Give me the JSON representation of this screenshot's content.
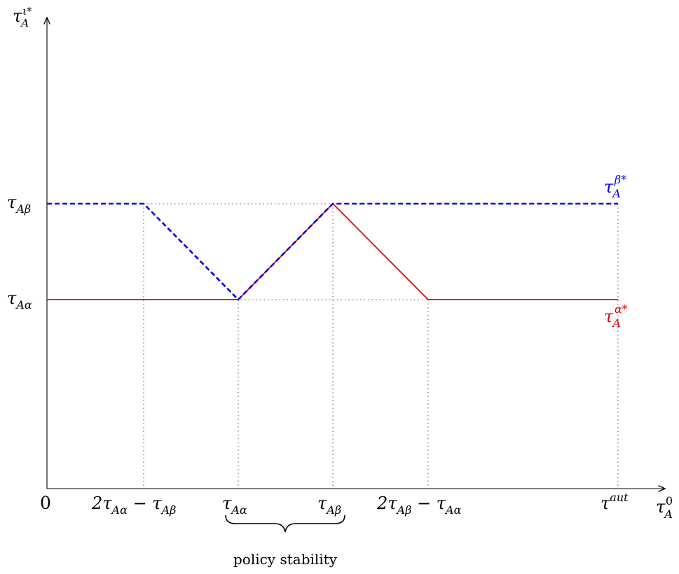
{
  "diagram": {
    "axes": {
      "y_label": {
        "base": "τ",
        "sub": "A",
        "sup": "ι*"
      },
      "x_label": {
        "base": "τ",
        "sub": "A",
        "sup": "0"
      },
      "origin_label": "0"
    },
    "x_ticks": [
      {
        "id": "x-tick-1",
        "parts": [
          [
            "2τ",
            ""
          ],
          [
            "",
            "Aα"
          ],
          [
            " − τ",
            ""
          ],
          [
            "",
            "Aβ"
          ]
        ]
      },
      {
        "id": "x-tick-2",
        "parts": [
          [
            "τ",
            ""
          ],
          [
            "",
            "Aα"
          ]
        ]
      },
      {
        "id": "x-tick-3",
        "parts": [
          [
            "τ",
            ""
          ],
          [
            "",
            "Aβ"
          ]
        ]
      },
      {
        "id": "x-tick-4",
        "parts": [
          [
            "2τ",
            ""
          ],
          [
            "",
            "Aβ"
          ],
          [
            " − τ",
            ""
          ],
          [
            "",
            "Aα"
          ]
        ]
      }
    ],
    "x_end_label": {
      "base": "τ",
      "sup": "aut"
    },
    "y_ticks": [
      {
        "id": "y-tick-beta",
        "base": "τ",
        "sub": "Aβ"
      },
      {
        "id": "y-tick-alpha",
        "base": "τ",
        "sub": "Aα"
      }
    ],
    "curves": {
      "beta": {
        "label_base": "τ",
        "label_sub": "A",
        "label_sup": "β*",
        "color": "#0000ee"
      },
      "alpha": {
        "label_base": "τ",
        "label_sub": "A",
        "label_sup": "α*",
        "color": "#ee0000"
      }
    },
    "brace_label": "policy stability",
    "colors": {
      "axis": "#000000",
      "guide": "#555555"
    }
  }
}
